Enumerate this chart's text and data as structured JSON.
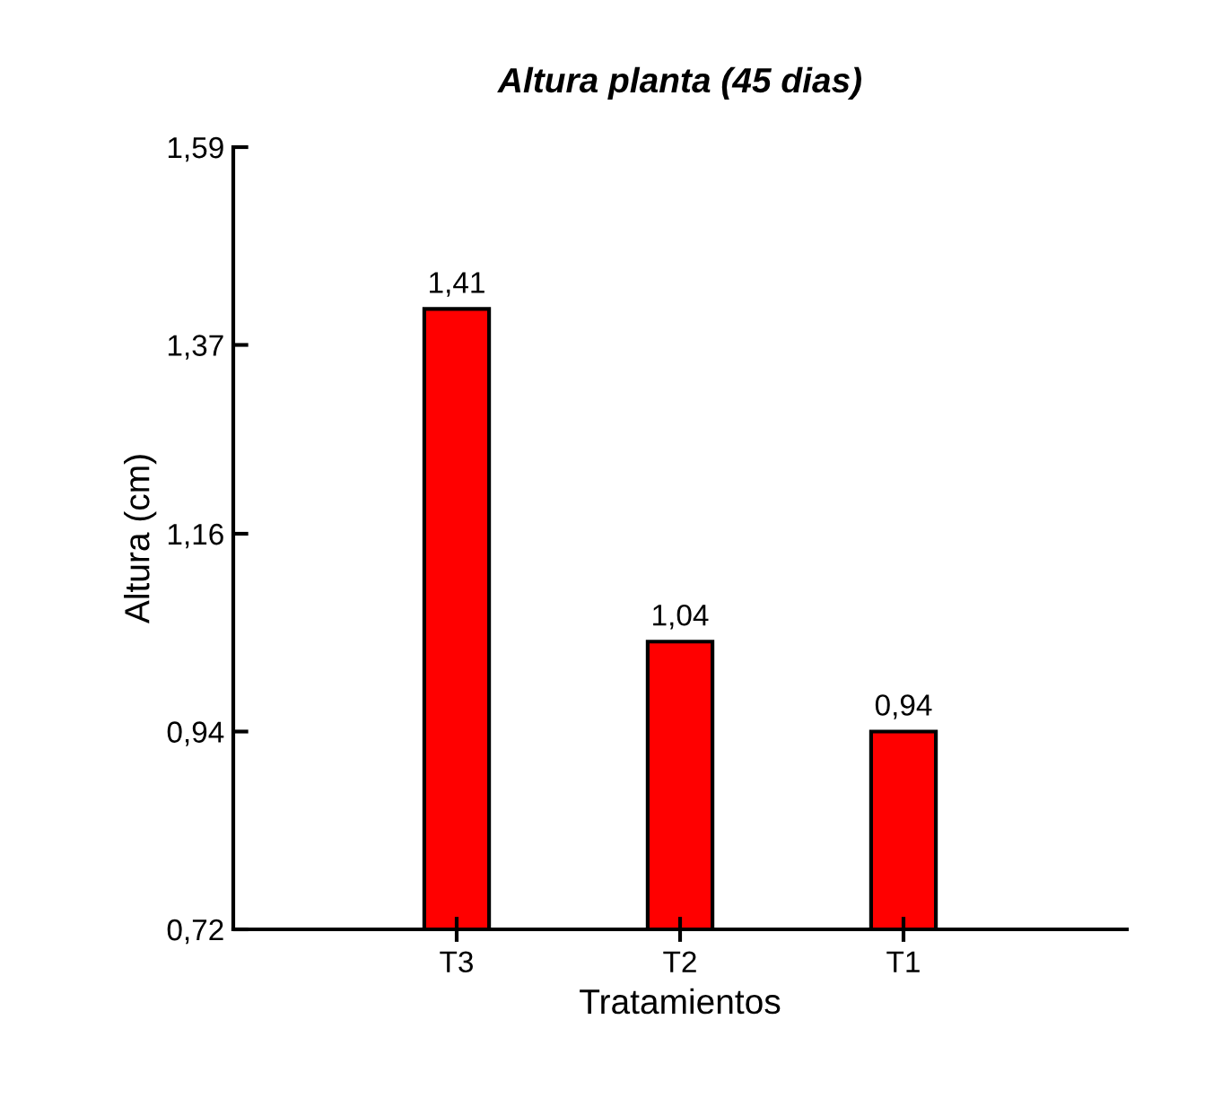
{
  "chart_data": {
    "type": "bar",
    "title": "Altura planta (45 dias)",
    "xlabel": "Tratamientos",
    "ylabel": "Altura (cm)",
    "categories": [
      "T3",
      "T2",
      "T1"
    ],
    "values": [
      1.41,
      1.04,
      0.94
    ],
    "value_labels": [
      "1,41",
      "1,04",
      "0,94"
    ],
    "color": "#ff0000",
    "ylim": [
      0.72,
      1.59
    ],
    "yticks": [
      {
        "value": 0.72,
        "label": "0,72"
      },
      {
        "value": 0.94,
        "label": "0,94"
      },
      {
        "value": 1.16,
        "label": "1,16"
      },
      {
        "value": 1.37,
        "label": "1,37"
      },
      {
        "value": 1.59,
        "label": "1,59"
      }
    ],
    "grid": false,
    "legend": false
  }
}
